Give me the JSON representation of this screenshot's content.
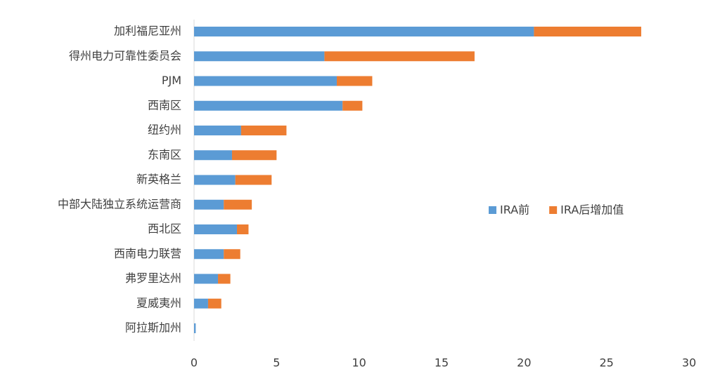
{
  "chart_data": {
    "type": "stacked-bar-horizontal",
    "categories": [
      "加利福尼亚州",
      "得州电力可靠性委员会",
      "PJM",
      "西南区",
      "纽约州",
      "东南区",
      "新英格兰",
      "中部大陆独立系统运营商",
      "西北区",
      "西南电力联营",
      "弗罗里达州",
      "夏威夷州",
      "阿拉斯加州"
    ],
    "series": [
      {
        "name": "IRA前",
        "color": "#5b9bd5",
        "values": [
          20.6,
          7.9,
          8.65,
          9.0,
          2.85,
          2.3,
          2.5,
          1.8,
          2.6,
          1.8,
          1.45,
          0.85,
          0.1
        ]
      },
      {
        "name": "IRA后增加值",
        "color": "#ed7d31",
        "values": [
          6.5,
          9.1,
          2.15,
          1.2,
          2.75,
          2.7,
          2.2,
          1.7,
          0.7,
          1.0,
          0.75,
          0.8,
          0
        ]
      }
    ],
    "xlim": [
      0,
      30
    ],
    "xticks": [
      0,
      5,
      10,
      15,
      20,
      25,
      30
    ],
    "grid": false
  }
}
